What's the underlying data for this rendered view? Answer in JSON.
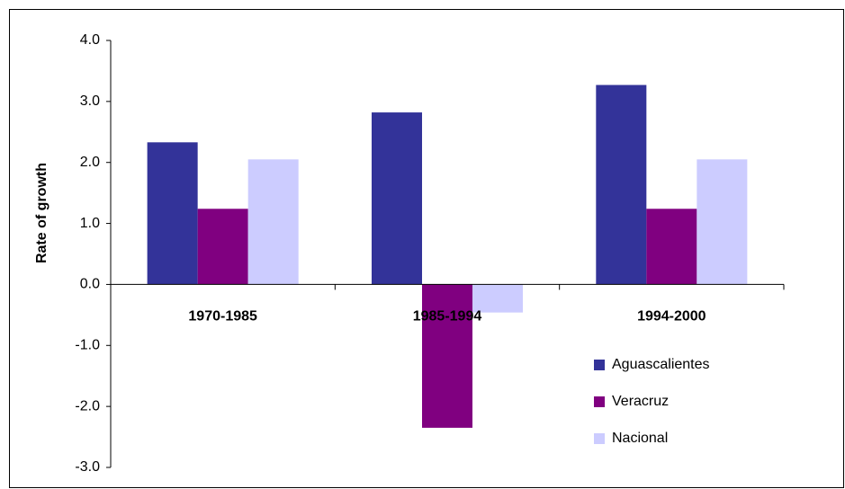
{
  "chart_data": {
    "type": "bar",
    "y_label": "Rate of growth",
    "categories": [
      "1970-1985",
      "1985-1994",
      "1994-2000"
    ],
    "series": [
      {
        "name": "Aguascalientes",
        "color": "#333399",
        "values": [
          2.33,
          2.82,
          3.27
        ]
      },
      {
        "name": "Veracruz",
        "color": "#800080",
        "values": [
          1.24,
          -2.35,
          1.24
        ]
      },
      {
        "name": "Nacional",
        "color": "#ccccff",
        "values": [
          2.05,
          -0.46,
          2.05
        ]
      }
    ],
    "ylim": [
      -3,
      4
    ],
    "yticks": [
      {
        "value": -3,
        "label": "-3.0"
      },
      {
        "value": -2,
        "label": "-2.0"
      },
      {
        "value": -1,
        "label": "-1.0"
      },
      {
        "value": 0,
        "label": "0.0"
      },
      {
        "value": 1,
        "label": "1.0"
      },
      {
        "value": 2,
        "label": "2.0"
      },
      {
        "value": 3,
        "label": "3.0"
      },
      {
        "value": 4,
        "label": "4.0"
      }
    ],
    "grid": false,
    "legend_position": "lower right"
  }
}
